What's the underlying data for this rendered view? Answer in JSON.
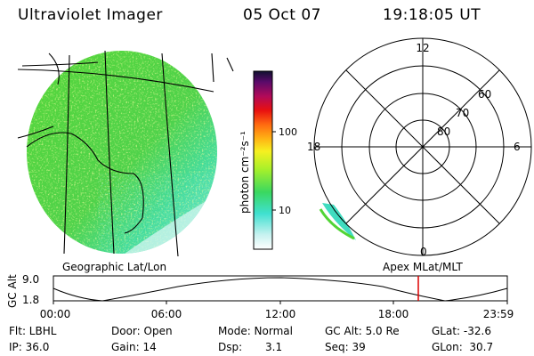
{
  "header": {
    "instrument": "Ultraviolet Imager",
    "date": "05 Oct 07",
    "time": "19:18:05 UT"
  },
  "colorbar": {
    "label": "photon cm⁻²s⁻¹",
    "ticks": [
      "100",
      "10"
    ]
  },
  "polar": {
    "hour_labels": {
      "top": "12",
      "left": "18",
      "right": "6",
      "bottom": "0"
    },
    "lat_labels": [
      "60",
      "70",
      "80"
    ]
  },
  "map_titles": {
    "geographic": "Geographic Lat/Lon",
    "apex": "Apex MLat/MLT"
  },
  "altitude_plot": {
    "ylabel": "GC Alt",
    "ymax": "9.0",
    "ymin": "1.8",
    "x_ticks": [
      "00:00",
      "06:00",
      "12:00",
      "18:00",
      "23:59"
    ],
    "marker_color": "#dd0000"
  },
  "status": {
    "flt": "Flt: LBHL",
    "ip": "IP: 36.0",
    "door": "Door: Open",
    "gain": "Gain: 14",
    "mode": "Mode: Normal",
    "dsp_label": "Dsp:",
    "dsp_value": "3.1",
    "gc_alt": "GC Alt: 5.0 Re",
    "seq": "Seq: 39",
    "glat": "GLat: -32.6",
    "glon": "GLon:  30.7"
  },
  "colors": {
    "disk_green": "#52d435",
    "disk_yellow": "#b8ef2c",
    "disk_cyan": "#40e3c8",
    "disk_pale": "#d0f5f1"
  }
}
